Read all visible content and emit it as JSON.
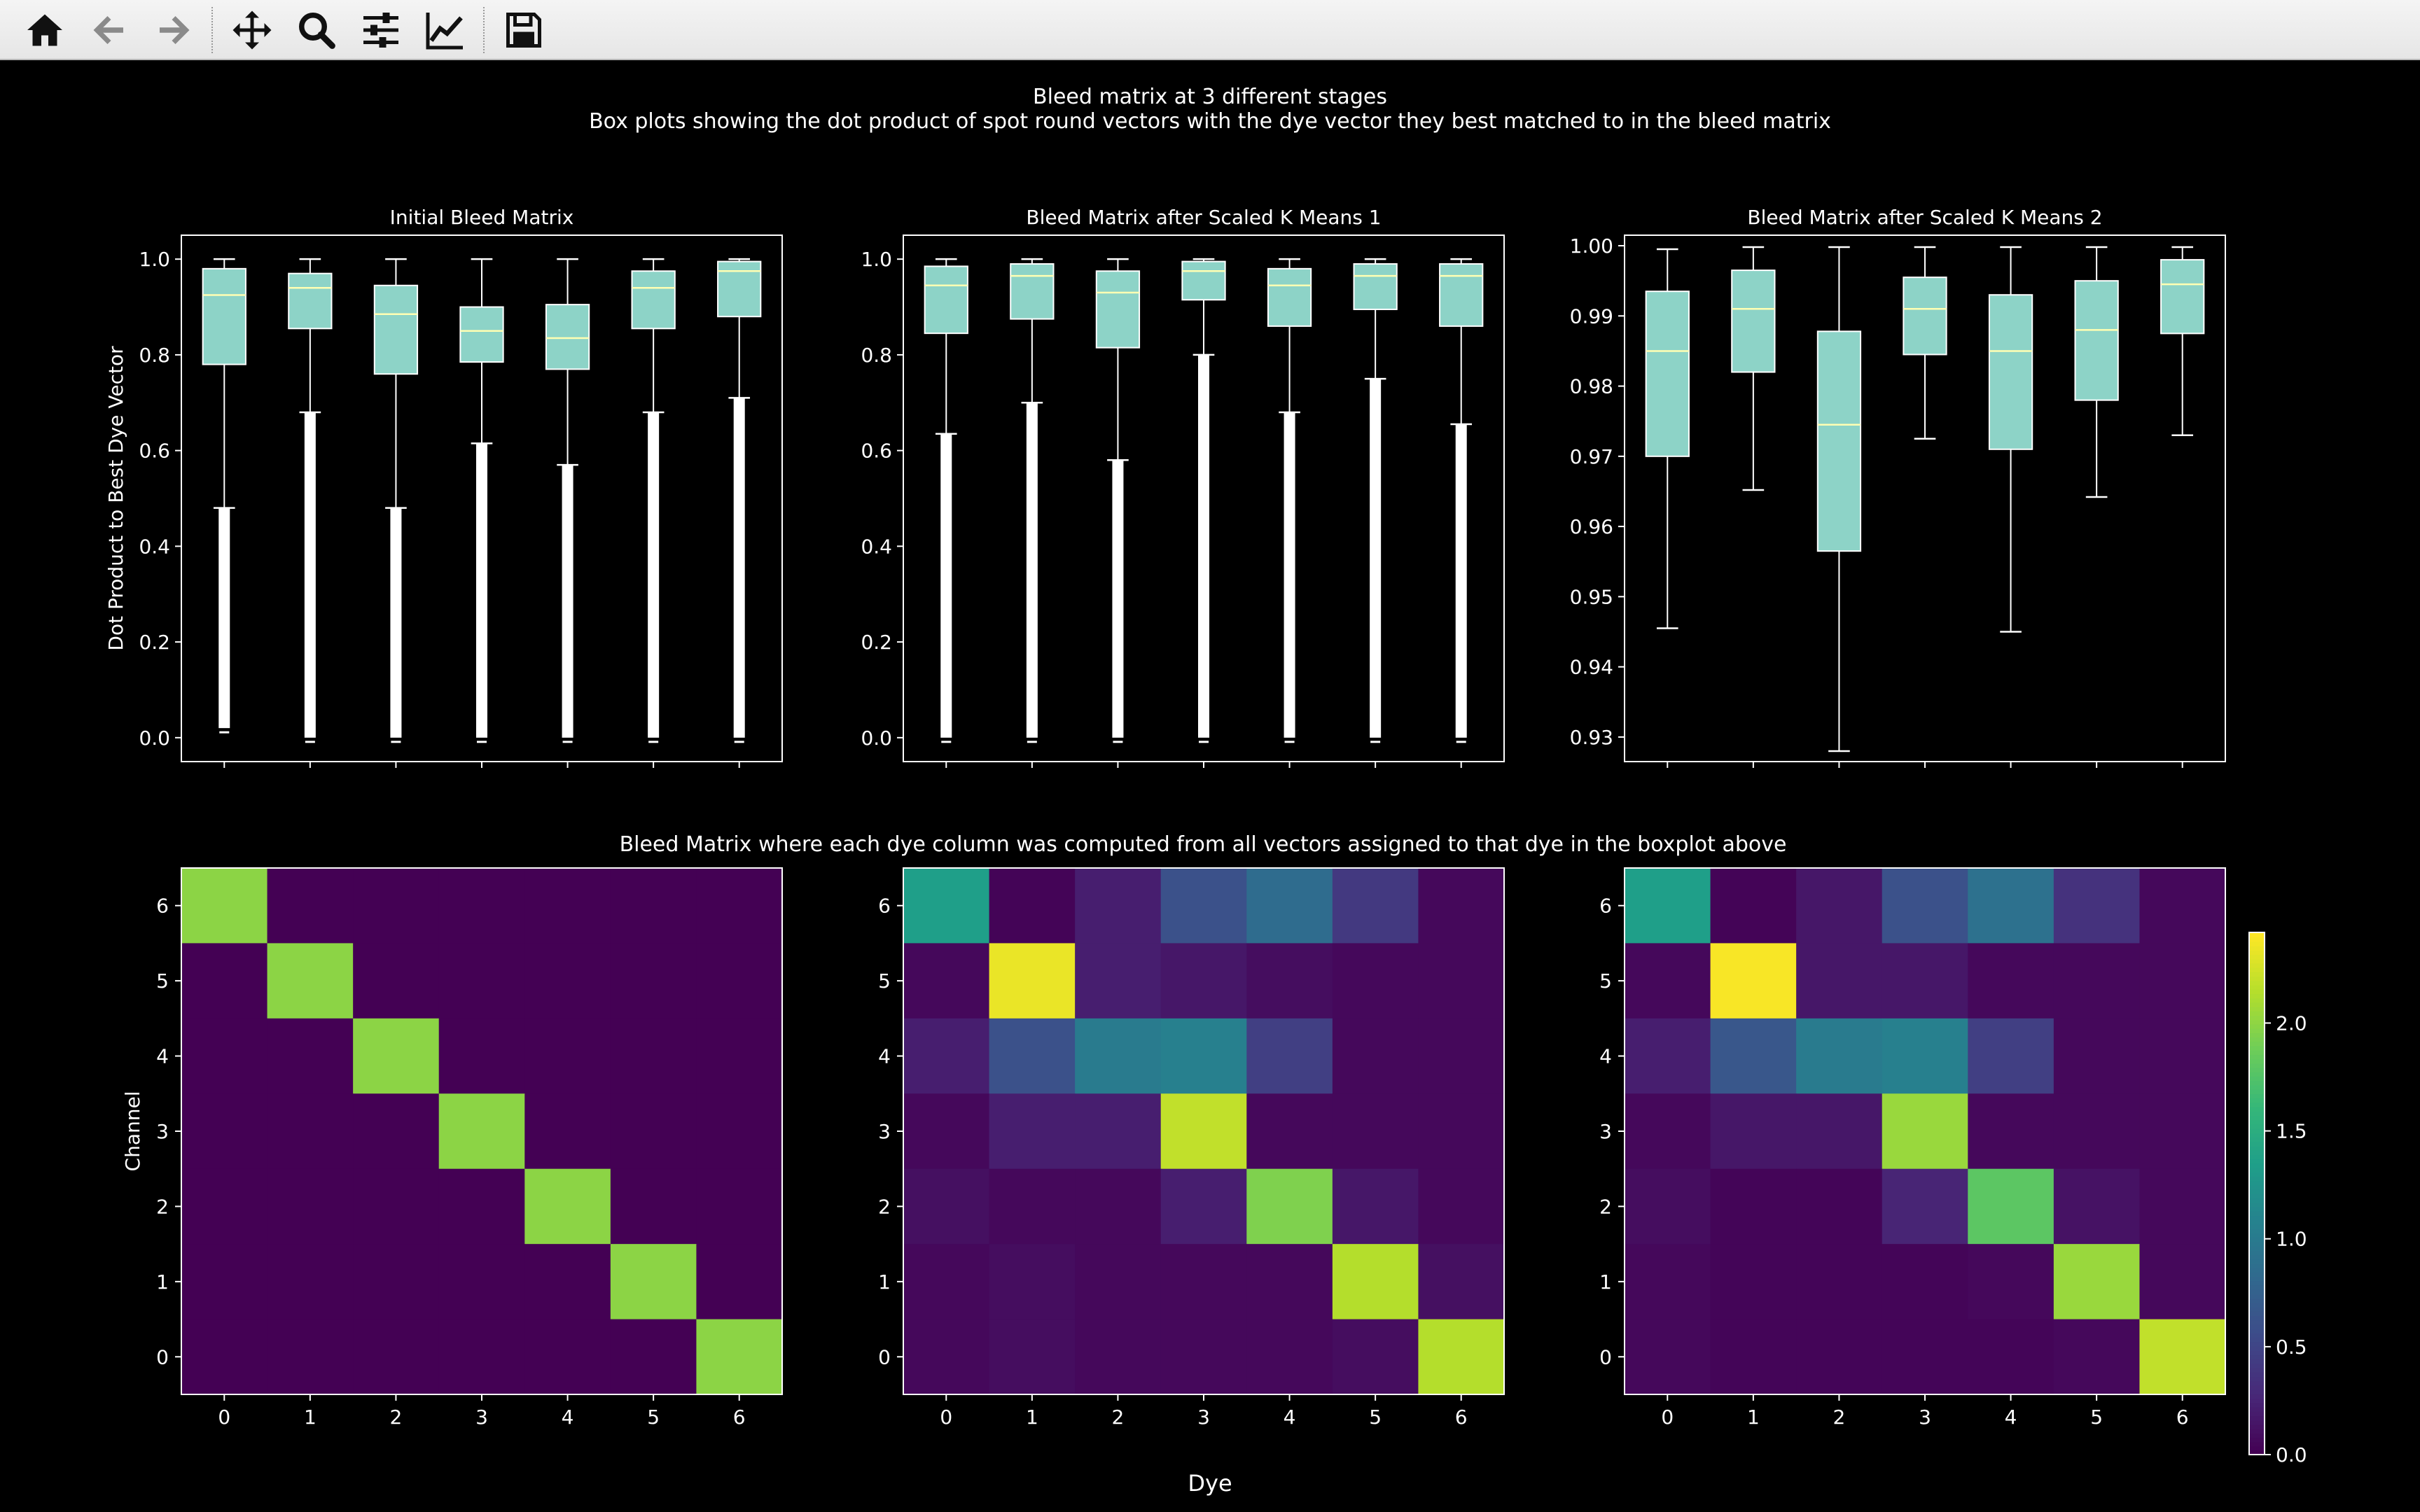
{
  "toolbar": {
    "buttons": [
      {
        "name": "home-button",
        "icon": "home-icon"
      },
      {
        "name": "back-button",
        "icon": "arrow-left-icon"
      },
      {
        "name": "forward-button",
        "icon": "arrow-right-icon"
      },
      {
        "name": "pan-button",
        "icon": "move-icon"
      },
      {
        "name": "zoom-button",
        "icon": "magnifier-icon"
      },
      {
        "name": "configure-subplots-button",
        "icon": "sliders-icon"
      },
      {
        "name": "edit-axis-button",
        "icon": "line-chart-icon"
      },
      {
        "name": "save-button",
        "icon": "floppy-disk-icon"
      }
    ]
  },
  "figure": {
    "suptitle": "Bleed matrix at 3 different stages",
    "subtitle": "Box plots showing the dot product of spot round vectors with the dye vector they best matched to in the bleed matrix",
    "row2_title": "Bleed Matrix where each dye column was computed from all vectors assigned to that dye in the boxplot above",
    "xlabel": "Dye",
    "colors": {
      "background": "#000000",
      "box_fill": "#8dd3c7",
      "median": "#ffffb3",
      "whisker": "#ffffff",
      "text": "#ffffff"
    }
  },
  "chart_data": [
    {
      "type": "box",
      "title": "Initial Bleed Matrix",
      "ylabel": "Dot Product to Best Dye Vector",
      "ylim": [
        -0.05,
        1.05
      ],
      "yticks": [
        "0.0",
        "0.2",
        "0.4",
        "0.6",
        "0.8",
        "1.0"
      ],
      "ytick_values": [
        0.0,
        0.2,
        0.4,
        0.6,
        0.8,
        1.0
      ],
      "categories": [
        0,
        1,
        2,
        3,
        4,
        5,
        6
      ],
      "boxes": [
        {
          "q1": 0.78,
          "median": 0.925,
          "q3": 0.98,
          "whislo": 0.48,
          "whishi": 1.0,
          "fliers_from": 0.02,
          "fliers_to": 0.48
        },
        {
          "q1": 0.855,
          "median": 0.94,
          "q3": 0.97,
          "whislo": 0.68,
          "whishi": 1.0,
          "fliers_from": 0.0,
          "fliers_to": 0.68
        },
        {
          "q1": 0.76,
          "median": 0.885,
          "q3": 0.945,
          "whislo": 0.48,
          "whishi": 1.0,
          "fliers_from": 0.0,
          "fliers_to": 0.48
        },
        {
          "q1": 0.785,
          "median": 0.85,
          "q3": 0.9,
          "whislo": 0.615,
          "whishi": 1.0,
          "fliers_from": 0.0,
          "fliers_to": 0.615
        },
        {
          "q1": 0.77,
          "median": 0.835,
          "q3": 0.905,
          "whislo": 0.57,
          "whishi": 1.0,
          "fliers_from": 0.0,
          "fliers_to": 0.57
        },
        {
          "q1": 0.855,
          "median": 0.94,
          "q3": 0.975,
          "whislo": 0.68,
          "whishi": 1.0,
          "fliers_from": 0.0,
          "fliers_to": 0.68
        },
        {
          "q1": 0.88,
          "median": 0.975,
          "q3": 0.995,
          "whislo": 0.71,
          "whishi": 1.0,
          "fliers_from": 0.0,
          "fliers_to": 0.71
        }
      ]
    },
    {
      "type": "box",
      "title": "Bleed Matrix after Scaled K Means 1",
      "ylabel": "",
      "ylim": [
        -0.05,
        1.05
      ],
      "yticks": [
        "0.0",
        "0.2",
        "0.4",
        "0.6",
        "0.8",
        "1.0"
      ],
      "ytick_values": [
        0.0,
        0.2,
        0.4,
        0.6,
        0.8,
        1.0
      ],
      "categories": [
        0,
        1,
        2,
        3,
        4,
        5,
        6
      ],
      "boxes": [
        {
          "q1": 0.845,
          "median": 0.945,
          "q3": 0.985,
          "whislo": 0.635,
          "whishi": 1.0,
          "fliers_from": 0.0,
          "fliers_to": 0.635
        },
        {
          "q1": 0.875,
          "median": 0.965,
          "q3": 0.99,
          "whislo": 0.7,
          "whishi": 1.0,
          "fliers_from": 0.0,
          "fliers_to": 0.7
        },
        {
          "q1": 0.815,
          "median": 0.93,
          "q3": 0.975,
          "whislo": 0.58,
          "whishi": 1.0,
          "fliers_from": 0.0,
          "fliers_to": 0.58
        },
        {
          "q1": 0.915,
          "median": 0.975,
          "q3": 0.995,
          "whislo": 0.8,
          "whishi": 1.0,
          "fliers_from": 0.0,
          "fliers_to": 0.8
        },
        {
          "q1": 0.86,
          "median": 0.945,
          "q3": 0.98,
          "whislo": 0.68,
          "whishi": 1.0,
          "fliers_from": 0.0,
          "fliers_to": 0.68
        },
        {
          "q1": 0.895,
          "median": 0.965,
          "q3": 0.99,
          "whislo": 0.75,
          "whishi": 1.0,
          "fliers_from": 0.0,
          "fliers_to": 0.75
        },
        {
          "q1": 0.86,
          "median": 0.965,
          "q3": 0.99,
          "whislo": 0.655,
          "whishi": 1.0,
          "fliers_from": 0.0,
          "fliers_to": 0.655
        }
      ]
    },
    {
      "type": "box",
      "title": "Bleed Matrix after Scaled K Means 2",
      "ylabel": "",
      "ylim": [
        0.9265,
        1.0015
      ],
      "yticks": [
        "0.93",
        "0.94",
        "0.95",
        "0.96",
        "0.97",
        "0.98",
        "0.99",
        "1.00"
      ],
      "ytick_values": [
        0.93,
        0.94,
        0.95,
        0.96,
        0.97,
        0.98,
        0.99,
        1.0
      ],
      "categories": [
        0,
        1,
        2,
        3,
        4,
        5,
        6
      ],
      "boxes": [
        {
          "q1": 0.97,
          "median": 0.985,
          "q3": 0.9935,
          "whislo": 0.9455,
          "whishi": 0.9995
        },
        {
          "q1": 0.982,
          "median": 0.991,
          "q3": 0.9965,
          "whislo": 0.9652,
          "whishi": 0.9998
        },
        {
          "q1": 0.9565,
          "median": 0.9745,
          "q3": 0.9878,
          "whislo": 0.928,
          "whishi": 0.9998
        },
        {
          "q1": 0.9845,
          "median": 0.991,
          "q3": 0.9955,
          "whislo": 0.9725,
          "whishi": 0.9998
        },
        {
          "q1": 0.971,
          "median": 0.985,
          "q3": 0.993,
          "whislo": 0.945,
          "whishi": 0.9998
        },
        {
          "q1": 0.978,
          "median": 0.988,
          "q3": 0.995,
          "whislo": 0.9642,
          "whishi": 0.9998
        },
        {
          "q1": 0.9875,
          "median": 0.9945,
          "q3": 0.998,
          "whislo": 0.973,
          "whishi": 0.9998
        }
      ]
    },
    {
      "type": "heatmap",
      "ylabel": "Channel",
      "x": [
        0,
        1,
        2,
        3,
        4,
        5,
        6
      ],
      "y": [
        0,
        1,
        2,
        3,
        4,
        5,
        6
      ],
      "values_by_channel_top_to_bottom": [
        [
          2.0,
          0,
          0,
          0,
          0,
          0,
          0
        ],
        [
          0,
          2.0,
          0,
          0,
          0,
          0,
          0
        ],
        [
          0,
          0,
          2.0,
          0,
          0,
          0,
          0
        ],
        [
          0,
          0,
          0,
          2.0,
          0,
          0,
          0
        ],
        [
          0,
          0,
          0,
          0,
          2.0,
          0,
          0
        ],
        [
          0,
          0,
          0,
          0,
          0,
          2.0,
          0
        ],
        [
          0,
          0,
          0,
          0,
          0,
          0,
          2.0
        ]
      ]
    },
    {
      "type": "heatmap",
      "ylabel": "",
      "x": [
        0,
        1,
        2,
        3,
        4,
        5,
        6
      ],
      "y": [
        0,
        1,
        2,
        3,
        4,
        5,
        6
      ],
      "values_by_channel_top_to_bottom": [
        [
          1.35,
          0.02,
          0.2,
          0.6,
          0.85,
          0.4,
          0.05
        ],
        [
          0.05,
          2.35,
          0.2,
          0.15,
          0.08,
          0.05,
          0.05
        ],
        [
          0.2,
          0.6,
          1.0,
          1.05,
          0.45,
          0.05,
          0.05
        ],
        [
          0.05,
          0.2,
          0.2,
          2.2,
          0.05,
          0.05,
          0.05
        ],
        [
          0.1,
          0.05,
          0.05,
          0.2,
          1.95,
          0.15,
          0.05
        ],
        [
          0.05,
          0.08,
          0.05,
          0.05,
          0.05,
          2.15,
          0.1
        ],
        [
          0.05,
          0.08,
          0.05,
          0.05,
          0.05,
          0.08,
          2.15
        ]
      ]
    },
    {
      "type": "heatmap",
      "ylabel": "",
      "x": [
        0,
        1,
        2,
        3,
        4,
        5,
        6
      ],
      "y": [
        0,
        1,
        2,
        3,
        4,
        5,
        6
      ],
      "values_by_channel_top_to_bottom": [
        [
          1.35,
          0.02,
          0.15,
          0.6,
          0.9,
          0.35,
          0.05
        ],
        [
          0.05,
          2.4,
          0.15,
          0.15,
          0.05,
          0.05,
          0.05
        ],
        [
          0.2,
          0.65,
          1.0,
          1.05,
          0.45,
          0.05,
          0.05
        ],
        [
          0.05,
          0.15,
          0.15,
          2.05,
          0.05,
          0.05,
          0.05
        ],
        [
          0.08,
          0.03,
          0.03,
          0.25,
          1.8,
          0.12,
          0.05
        ],
        [
          0.05,
          0.03,
          0.03,
          0.03,
          0.05,
          2.05,
          0.05
        ],
        [
          0.05,
          0.03,
          0.03,
          0.03,
          0.03,
          0.05,
          2.2
        ]
      ]
    }
  ],
  "colorbar": {
    "type": "colorbar",
    "range": [
      0,
      2.42
    ],
    "ticks": [
      "0.0",
      "0.5",
      "1.0",
      "1.5",
      "2.0"
    ],
    "tick_values": [
      0.0,
      0.5,
      1.0,
      1.5,
      2.0
    ],
    "colormap": "viridis"
  }
}
